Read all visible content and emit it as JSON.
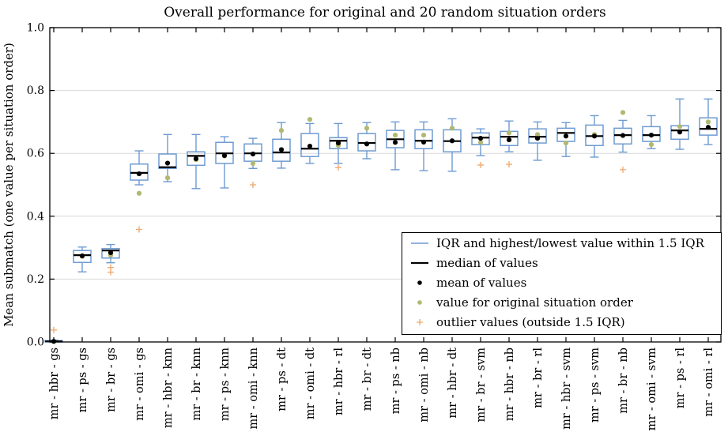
{
  "figure": {
    "title": "Overall performance for original and 20 random situation orders",
    "ylabel": "Mean submatch (one value per situation order)"
  },
  "chart_data": {
    "type": "boxplot",
    "title": "Overall performance for original and 20 random situation orders",
    "xlabel": "",
    "ylabel": "Mean submatch (one value per situation order)",
    "ylim": [
      0.0,
      1.0
    ],
    "yticks": [
      0.0,
      0.2,
      0.4,
      0.6,
      0.8,
      1.0
    ],
    "ytick_labels": [
      "0.0",
      "0.2",
      "0.4",
      "0.6",
      "0.8",
      "1.0"
    ],
    "grid": "horizontal",
    "legend": {
      "position": "lower right",
      "items": [
        {
          "symbol": "blue-line",
          "color": "#6E9BD2",
          "label": "IQR and highest/lowest value within 1.5 IQR"
        },
        {
          "symbol": "black-line",
          "color": "#000000",
          "label": "median of values"
        },
        {
          "symbol": "black-dot",
          "color": "#000000",
          "label": "mean of values"
        },
        {
          "symbol": "olive-dot",
          "color": "#B1B871",
          "label": "value for original situation order"
        },
        {
          "symbol": "orange-plus",
          "color": "#F0A668",
          "label": "outlier values (outside 1.5 IQR)"
        }
      ]
    },
    "colors": {
      "box": "#6E9BD2",
      "median": "#000000",
      "mean": "#000000",
      "original": "#B1B871",
      "outlier": "#F0A668",
      "grid": "#D9D9D9",
      "axis": "#000000",
      "background": "#FFFFFF"
    },
    "boxes": [
      {
        "label": "mr - hbr - gs",
        "whisker_low": 0.0,
        "q1": 0.0,
        "median": 0.002,
        "q3": 0.004,
        "whisker_high": 0.006,
        "mean": 0.002,
        "original": 0.001,
        "outliers": [
          0.038
        ]
      },
      {
        "label": "mr - ps - gs",
        "whisker_low": 0.223,
        "q1": 0.253,
        "median": 0.276,
        "q3": 0.291,
        "whisker_high": 0.302,
        "mean": 0.274,
        "original": 0.272,
        "outliers": []
      },
      {
        "label": "mr - br - gs",
        "whisker_low": 0.252,
        "q1": 0.267,
        "median": 0.291,
        "q3": 0.297,
        "whisker_high": 0.31,
        "mean": 0.284,
        "original": 0.276,
        "outliers": [
          0.237,
          0.222
        ]
      },
      {
        "label": "mr - omi - gs",
        "whisker_low": 0.5,
        "q1": 0.515,
        "median": 0.538,
        "q3": 0.566,
        "whisker_high": 0.608,
        "mean": 0.535,
        "original": 0.473,
        "outliers": [
          0.358
        ]
      },
      {
        "label": "mr - hbr - knn",
        "whisker_low": 0.51,
        "q1": 0.552,
        "median": 0.556,
        "q3": 0.598,
        "whisker_high": 0.66,
        "mean": 0.569,
        "original": 0.522,
        "outliers": []
      },
      {
        "label": "mr - br - knn",
        "whisker_low": 0.488,
        "q1": 0.562,
        "median": 0.592,
        "q3": 0.605,
        "whisker_high": 0.66,
        "mean": 0.583,
        "original": 0.58,
        "outliers": []
      },
      {
        "label": "mr - ps - knn",
        "whisker_low": 0.49,
        "q1": 0.568,
        "median": 0.6,
        "q3": 0.635,
        "whisker_high": 0.653,
        "mean": 0.593,
        "original": 0.592,
        "outliers": []
      },
      {
        "label": "mr - omi - knn",
        "whisker_low": 0.552,
        "q1": 0.575,
        "median": 0.6,
        "q3": 0.63,
        "whisker_high": 0.648,
        "mean": 0.598,
        "original": 0.568,
        "outliers": [
          0.5
        ]
      },
      {
        "label": "mr - ps - dt",
        "whisker_low": 0.553,
        "q1": 0.575,
        "median": 0.603,
        "q3": 0.645,
        "whisker_high": 0.698,
        "mean": 0.612,
        "original": 0.673,
        "outliers": []
      },
      {
        "label": "mr - omi - dt",
        "whisker_low": 0.568,
        "q1": 0.59,
        "median": 0.615,
        "q3": 0.663,
        "whisker_high": 0.695,
        "mean": 0.623,
        "original": 0.708,
        "outliers": []
      },
      {
        "label": "mr - hbr - rl",
        "whisker_low": 0.568,
        "q1": 0.615,
        "median": 0.64,
        "q3": 0.65,
        "whisker_high": 0.695,
        "mean": 0.633,
        "original": 0.625,
        "outliers": [
          0.555
        ]
      },
      {
        "label": "mr - br - dt",
        "whisker_low": 0.583,
        "q1": 0.608,
        "median": 0.633,
        "q3": 0.663,
        "whisker_high": 0.698,
        "mean": 0.63,
        "original": 0.68,
        "outliers": []
      },
      {
        "label": "mr - ps - nb",
        "whisker_low": 0.548,
        "q1": 0.618,
        "median": 0.645,
        "q3": 0.673,
        "whisker_high": 0.7,
        "mean": 0.635,
        "original": 0.658,
        "outliers": []
      },
      {
        "label": "mr - omi - nb",
        "whisker_low": 0.545,
        "q1": 0.615,
        "median": 0.64,
        "q3": 0.675,
        "whisker_high": 0.7,
        "mean": 0.636,
        "original": 0.658,
        "outliers": []
      },
      {
        "label": "mr - hbr - dt",
        "whisker_low": 0.543,
        "q1": 0.605,
        "median": 0.639,
        "q3": 0.675,
        "whisker_high": 0.71,
        "mean": 0.64,
        "original": 0.68,
        "outliers": []
      },
      {
        "label": "mr - br - svm",
        "whisker_low": 0.593,
        "q1": 0.628,
        "median": 0.65,
        "q3": 0.665,
        "whisker_high": 0.678,
        "mean": 0.648,
        "original": 0.635,
        "outliers": [
          0.563
        ]
      },
      {
        "label": "mr - hbr - nb",
        "whisker_low": 0.605,
        "q1": 0.625,
        "median": 0.653,
        "q3": 0.67,
        "whisker_high": 0.703,
        "mean": 0.643,
        "original": 0.665,
        "outliers": [
          0.565
        ]
      },
      {
        "label": "mr - br - rl",
        "whisker_low": 0.578,
        "q1": 0.633,
        "median": 0.653,
        "q3": 0.678,
        "whisker_high": 0.7,
        "mean": 0.648,
        "original": 0.66,
        "outliers": []
      },
      {
        "label": "mr - hbr - svm",
        "whisker_low": 0.59,
        "q1": 0.638,
        "median": 0.665,
        "q3": 0.68,
        "whisker_high": 0.698,
        "mean": 0.655,
        "original": 0.633,
        "outliers": []
      },
      {
        "label": "mr - ps - svm",
        "whisker_low": 0.588,
        "q1": 0.625,
        "median": 0.655,
        "q3": 0.69,
        "whisker_high": 0.72,
        "mean": 0.655,
        "original": 0.66,
        "outliers": []
      },
      {
        "label": "mr - br - nb",
        "whisker_low": 0.604,
        "q1": 0.63,
        "median": 0.658,
        "q3": 0.68,
        "whisker_high": 0.705,
        "mean": 0.657,
        "original": 0.73,
        "outliers": [
          0.548
        ]
      },
      {
        "label": "mr - omi - svm",
        "whisker_low": 0.615,
        "q1": 0.638,
        "median": 0.658,
        "q3": 0.685,
        "whisker_high": 0.72,
        "mean": 0.658,
        "original": 0.628,
        "outliers": []
      },
      {
        "label": "mr - ps - rl",
        "whisker_low": 0.613,
        "q1": 0.645,
        "median": 0.673,
        "q3": 0.688,
        "whisker_high": 0.773,
        "mean": 0.668,
        "original": 0.685,
        "outliers": []
      },
      {
        "label": "mr - omi - rl",
        "whisker_low": 0.628,
        "q1": 0.658,
        "median": 0.678,
        "q3": 0.713,
        "whisker_high": 0.773,
        "mean": 0.683,
        "original": 0.7,
        "outliers": []
      }
    ]
  }
}
